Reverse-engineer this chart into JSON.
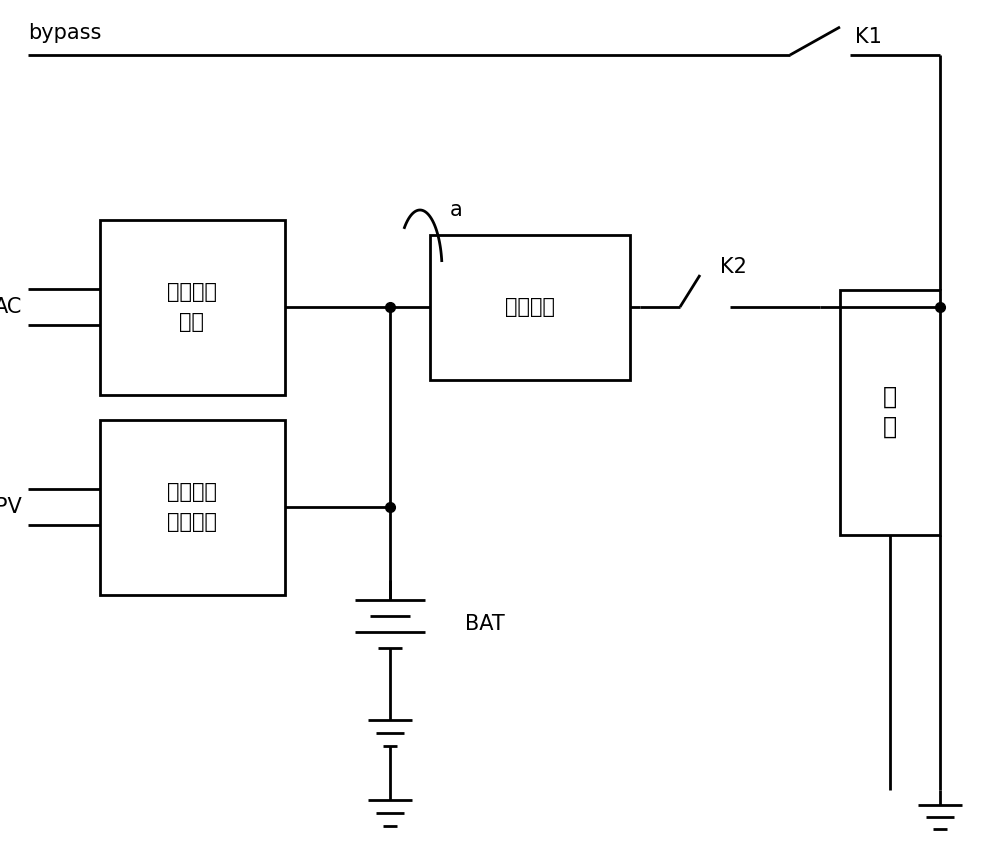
{
  "bg_color": "#ffffff",
  "line_color": "#000000",
  "lw": 2.0,
  "bypass_label": "bypass",
  "k1_label": "K1",
  "k2_label": "K2",
  "a_label": "a",
  "bat_label": "BAT",
  "ac_label": "AC",
  "pv_label": "PV",
  "box1_line1": "市电整流",
  "box1_line2": "模块",
  "box2_line1": "光伏输出",
  "box2_line2": "控制模块",
  "box3_label": "逆变模块",
  "box4_line1": "负",
  "box4_line2": "载",
  "figsize": [
    10.06,
    8.47
  ],
  "dpi": 100
}
